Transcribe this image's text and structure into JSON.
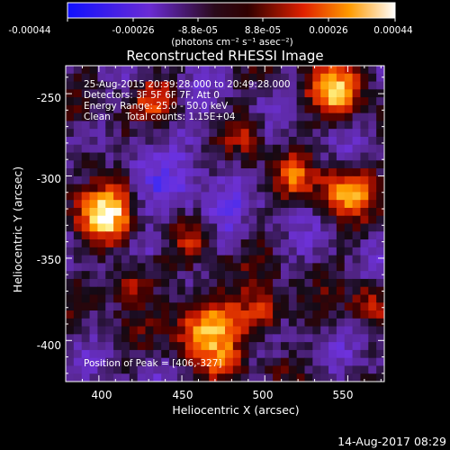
{
  "colorbar": {
    "ticks": [
      "-0.00044",
      "-0.00026",
      "-8.8e-05",
      "8.8e-05",
      "0.00026",
      "0.00044"
    ],
    "unit_label": "(photons cm⁻² s⁻¹ asec⁻²)"
  },
  "title": "Reconstructed RHESSI Image",
  "info": {
    "line1": "25-Aug-2015 20:39:28.000 to 20:49:28.000",
    "line2": "Detectors: 3F 5F 6F 7F, Att 0",
    "line3": "Energy Range: 25.0 - 50.0 keV",
    "line4": "Clean     Total counts: 1.15E+04"
  },
  "peak_text": "Position of Peak = [406,-327]",
  "axes": {
    "xlabel": "Heliocentric X (arcsec)",
    "ylabel": "Heliocentric Y (arcsec)",
    "x_ticks": [
      "400",
      "450",
      "500",
      "550"
    ],
    "y_ticks": [
      "-250",
      "-300",
      "-350",
      "-400"
    ],
    "x_range": [
      380,
      572
    ],
    "y_range": [
      -425,
      -233
    ]
  },
  "footer_timestamp": "14-Aug-2017 08:29",
  "colors": {
    "background": "#000000",
    "axes": "#ffffff"
  }
}
